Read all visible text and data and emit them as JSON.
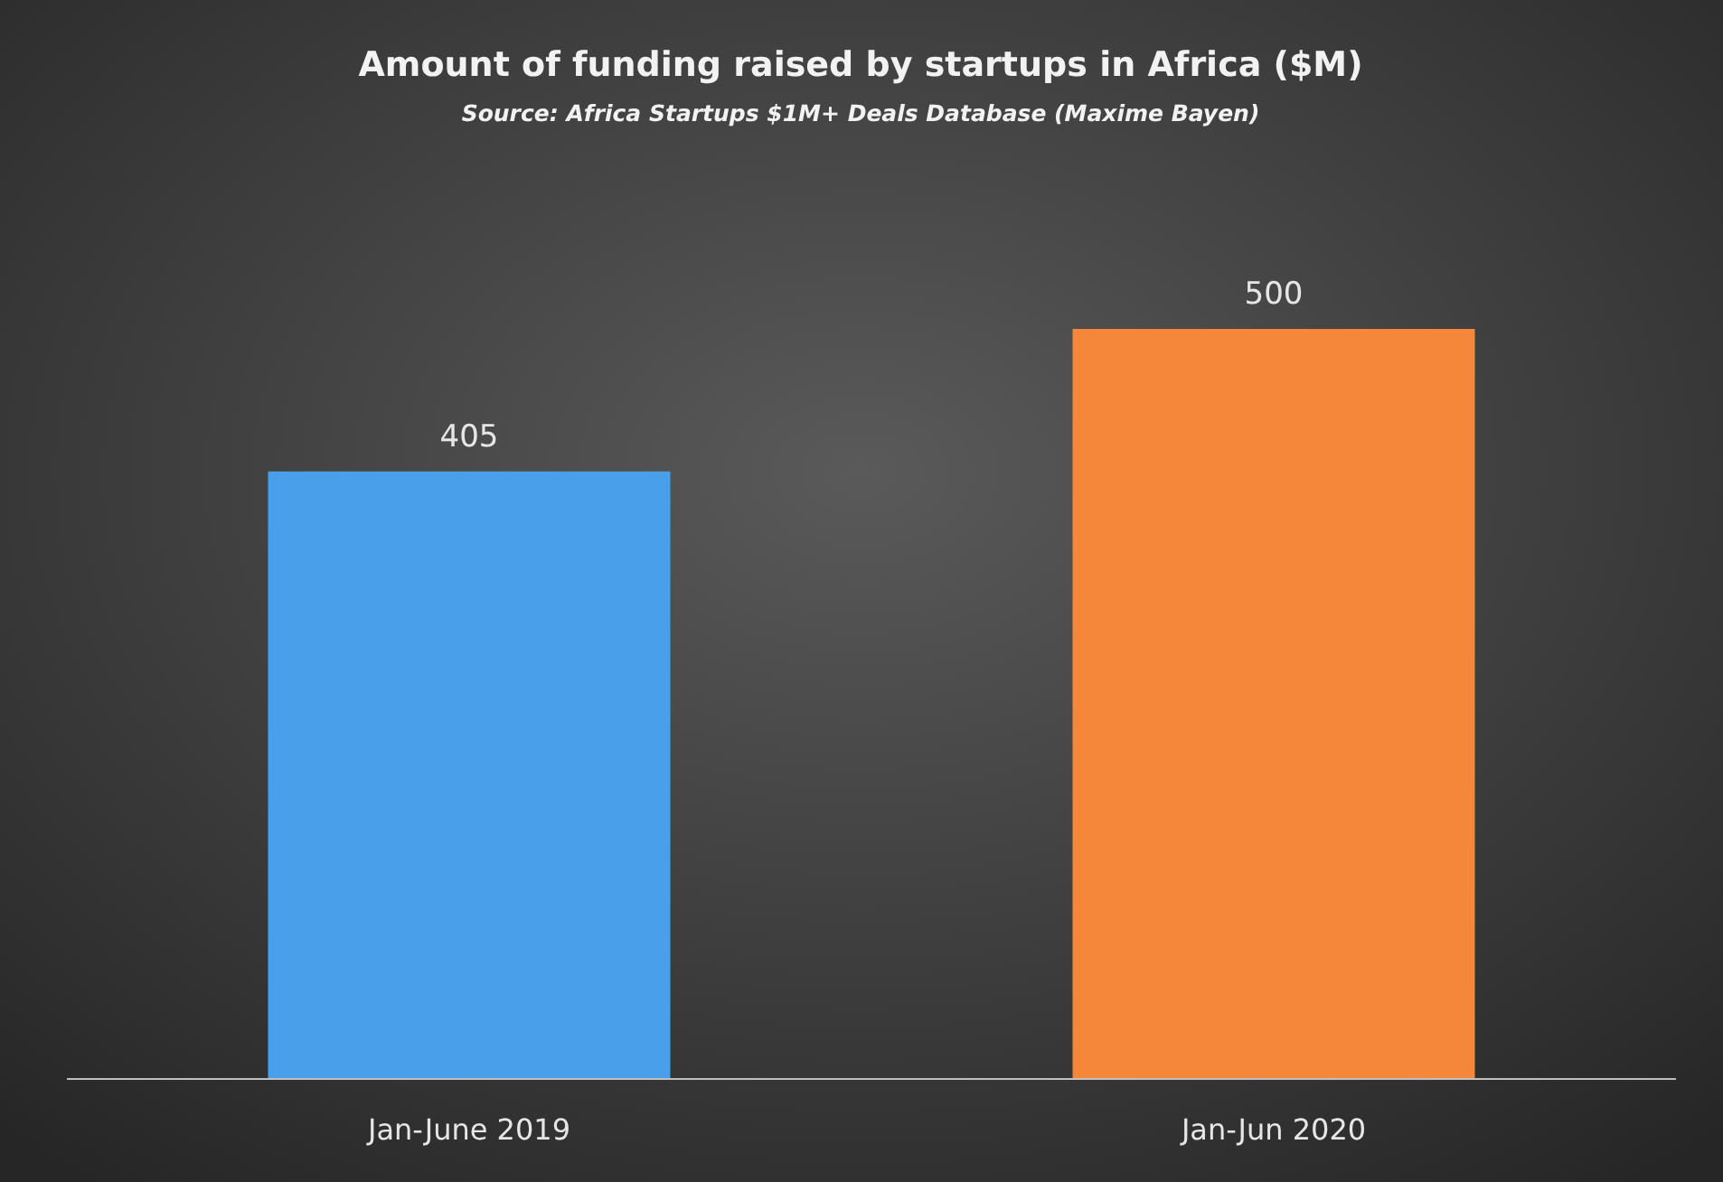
{
  "chart_data": {
    "type": "bar",
    "title": "Amount of funding raised by startups in Africa ($M)",
    "annotations": [
      "Source: Africa Startups $1M+ Deals Database (Maxime Bayen)"
    ],
    "categories": [
      "Jan-June 2019",
      "Jan-Jun 2020"
    ],
    "values": [
      405,
      500
    ],
    "colors": [
      "#4a9fea",
      "#f5873a"
    ],
    "data_labels": true
  }
}
